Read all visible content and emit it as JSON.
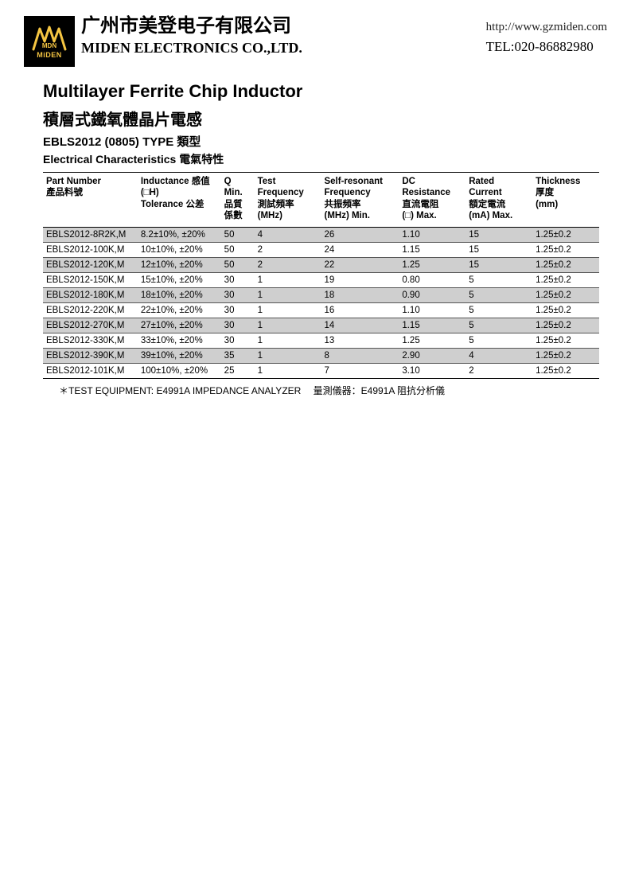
{
  "header": {
    "logo_text": "MiDEN",
    "company_cn": "广州市美登电子有限公司",
    "company_en": "MIDEN ELECTRONICS CO.,LTD.",
    "url": "http://www.gzmiden.com",
    "tel": "TEL:020-86882980"
  },
  "titles": {
    "main_en": "Multilayer Ferrite Chip Inductor",
    "main_cn": "積層式鐵氧體晶片電感",
    "type_line": "EBLS2012 (0805) TYPE 類型",
    "sub": "Electrical Characteristics 電氣特性"
  },
  "table": {
    "columns": [
      {
        "l1": "Part Number",
        "l2": "產品料號",
        "l3": ""
      },
      {
        "l1": "Inductance 感值",
        "l2": "(□H)",
        "l3": "Tolerance 公差"
      },
      {
        "l1": "Q",
        "l2": "Min.",
        "l3": "品質",
        "l4": "係數"
      },
      {
        "l1": "Test",
        "l2": "Frequency",
        "l3": "測試頻率",
        "l4": "(MHz)"
      },
      {
        "l1": "Self-resonant",
        "l2": "Frequency",
        "l3": "共振頻率",
        "l4": "(MHz) Min."
      },
      {
        "l1": "DC",
        "l2": "Resistance",
        "l3": "直流電阻",
        "l4": "(□) Max."
      },
      {
        "l1": "Rated",
        "l2": "Current",
        "l3": "額定電流",
        "l4": "(mA) Max."
      },
      {
        "l1": "Thickness",
        "l2": "厚度",
        "l3": "(mm)"
      }
    ],
    "rows": [
      {
        "shaded": true,
        "c": [
          "EBLS2012-8R2K,M",
          "8.2±10%, ±20%",
          "50",
          "4",
          "26",
          "1.10",
          "15",
          "1.25±0.2"
        ]
      },
      {
        "shaded": false,
        "c": [
          "EBLS2012-100K,M",
          "10±10%, ±20%",
          "50",
          "2",
          "24",
          "1.15",
          "15",
          "1.25±0.2"
        ]
      },
      {
        "shaded": true,
        "c": [
          "EBLS2012-120K,M",
          "12±10%, ±20%",
          "50",
          "2",
          "22",
          "1.25",
          "15",
          "1.25±0.2"
        ]
      },
      {
        "shaded": false,
        "c": [
          "EBLS2012-150K,M",
          "15±10%, ±20%",
          "30",
          "1",
          "19",
          "0.80",
          "5",
          "1.25±0.2"
        ]
      },
      {
        "shaded": true,
        "c": [
          "EBLS2012-180K,M",
          "18±10%, ±20%",
          "30",
          "1",
          "18",
          "0.90",
          "5",
          "1.25±0.2"
        ]
      },
      {
        "shaded": false,
        "c": [
          "EBLS2012-220K,M",
          "22±10%, ±20%",
          "30",
          "1",
          "16",
          "1.10",
          "5",
          "1.25±0.2"
        ]
      },
      {
        "shaded": true,
        "c": [
          "EBLS2012-270K,M",
          "27±10%, ±20%",
          "30",
          "1",
          "14",
          "1.15",
          "5",
          "1.25±0.2"
        ]
      },
      {
        "shaded": false,
        "c": [
          "EBLS2012-330K,M",
          "33±10%, ±20%",
          "30",
          "1",
          "13",
          "1.25",
          "5",
          "1.25±0.2"
        ]
      },
      {
        "shaded": true,
        "c": [
          "EBLS2012-390K,M",
          "39±10%, ±20%",
          "35",
          "1",
          "8",
          "2.90",
          "4",
          "1.25±0.2"
        ]
      },
      {
        "shaded": false,
        "c": [
          "EBLS2012-101K,M",
          "100±10%, ±20%",
          "25",
          "1",
          "7",
          "3.10",
          "2",
          "1.25±0.2"
        ]
      }
    ]
  },
  "footnote": "＊TEST EQUIPMENT: E4991A IMPEDANCE ANALYZER　 量測儀器：E4991A 阻抗分析儀"
}
